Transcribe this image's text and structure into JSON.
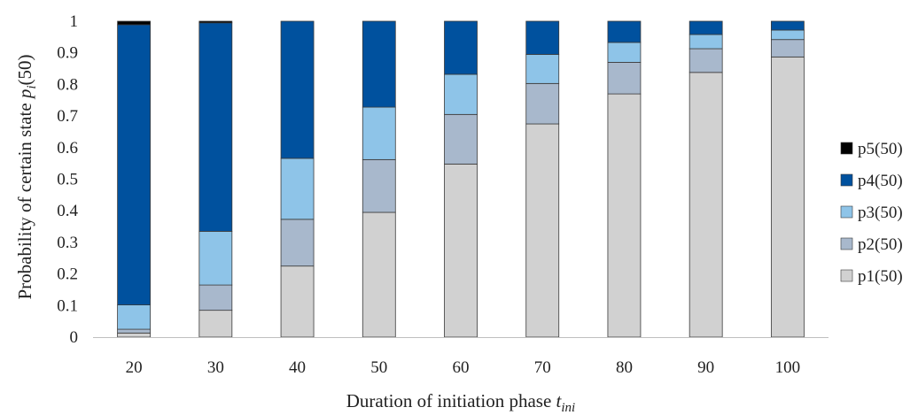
{
  "chart_data": {
    "type": "bar",
    "stacked": true,
    "categories": [
      "20",
      "30",
      "40",
      "50",
      "60",
      "70",
      "80",
      "90",
      "100"
    ],
    "series": [
      {
        "name": "p1(50)",
        "color": "#d1d1d1",
        "values": [
          0.013,
          0.085,
          0.225,
          0.395,
          0.548,
          0.675,
          0.77,
          0.838,
          0.887
        ]
      },
      {
        "name": "p2(50)",
        "color": "#a8b8cc",
        "values": [
          0.012,
          0.08,
          0.148,
          0.167,
          0.157,
          0.128,
          0.1,
          0.075,
          0.055
        ]
      },
      {
        "name": "p3(50)",
        "color": "#8ec4e8",
        "values": [
          0.077,
          0.17,
          0.193,
          0.166,
          0.127,
          0.092,
          0.063,
          0.045,
          0.03
        ]
      },
      {
        "name": "p4(50)",
        "color": "#00519e",
        "values": [
          0.887,
          0.66,
          0.434,
          0.272,
          0.168,
          0.105,
          0.067,
          0.042,
          0.028
        ]
      },
      {
        "name": "p5(50)",
        "color": "#000000",
        "values": [
          0.011,
          0.005,
          0.0,
          0.0,
          0.0,
          0.0,
          0.0,
          0.0,
          0.0
        ]
      }
    ],
    "ylim": [
      0,
      1
    ],
    "yticks": [
      "0",
      "0.1",
      "0.2",
      "0.3",
      "0.4",
      "0.5",
      "0.6",
      "0.7",
      "0.8",
      "0.9",
      "1"
    ],
    "ylabel": {
      "text": "Probability of certain state ",
      "var": "p",
      "sub": "i",
      "suffix": "(50)"
    },
    "xlabel": {
      "text": "Duration of initiation phase ",
      "var": "t",
      "sub": "ini"
    },
    "legend_position": "right",
    "grid": false
  }
}
